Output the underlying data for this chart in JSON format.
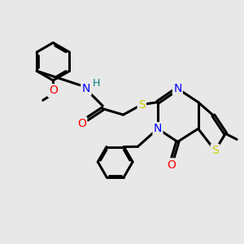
{
  "background_color": "#e8e8e8",
  "atom_colors": {
    "N": "#0000ff",
    "O": "#ff0000",
    "S": "#cccc00",
    "H": "#008080",
    "C": "#000000"
  },
  "bond_color": "#000000",
  "bond_width": 2.2,
  "figsize": [
    3.0,
    3.0
  ],
  "dpi": 100
}
